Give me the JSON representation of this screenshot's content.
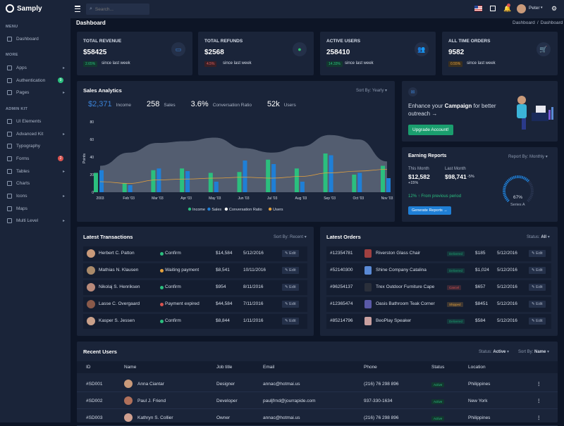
{
  "brand": "Samply",
  "search_placeholder": "Search...",
  "user": {
    "name": "Peter"
  },
  "breadcrumb": {
    "page_title": "Dashboard",
    "home": "Dashboard",
    "current": "Dashboard",
    "sep": "/"
  },
  "sidebar": {
    "menu_head": "MENU",
    "more_head": "MORE",
    "admin_head": "ADMIN KIT",
    "items": [
      {
        "label": "Dashboard",
        "icon": "grid-icon"
      },
      {
        "label": "Apps",
        "icon": "apps-icon"
      },
      {
        "label": "Authentication",
        "icon": "lock-icon",
        "badge": "9"
      },
      {
        "label": "Pages",
        "icon": "file-icon"
      },
      {
        "label": "UI Elements",
        "icon": "box-icon"
      },
      {
        "label": "Advanced Kit",
        "icon": "settings-icon"
      },
      {
        "label": "Typography",
        "icon": "type-icon"
      },
      {
        "label": "Forms",
        "icon": "edit-icon",
        "badge": "2"
      },
      {
        "label": "Tables",
        "icon": "table-icon"
      },
      {
        "label": "Charts",
        "icon": "chart-icon"
      },
      {
        "label": "Icons",
        "icon": "star-icon"
      },
      {
        "label": "Maps",
        "icon": "map-icon"
      },
      {
        "label": "Multi Level",
        "icon": "share-icon"
      }
    ]
  },
  "stats": [
    {
      "title": "TOTAL REVENUE",
      "value": "$58425",
      "badge": "2.65%",
      "badge_color": "#1a9e6e",
      "since": "since last week",
      "icon": "wallet-icon",
      "icon_color": "#3b82d6"
    },
    {
      "title": "TOTAL REFUNDS",
      "value": "$2568",
      "badge": "4.5%",
      "badge_color": "#d9534f",
      "since": "since last week",
      "icon": "refund-icon",
      "icon_color": "#2fbe6b"
    },
    {
      "title": "ACTIVE USERS",
      "value": "258410",
      "badge": "14.33%",
      "badge_color": "#1a9e6e",
      "since": "since last week",
      "icon": "users-icon",
      "icon_color": "#3b82d6"
    },
    {
      "title": "ALL TIME ORDERS",
      "value": "9582",
      "badge": "0.55%",
      "badge_color": "#e6a23c",
      "since": "since last week",
      "icon": "cart-icon",
      "icon_color": "#2fbe6b"
    }
  ],
  "analytics": {
    "title": "Sales Analytics",
    "sort_label": "Sort By:",
    "sort_value": "Yearly",
    "metrics": [
      {
        "value": "$2,371",
        "label": "Income"
      },
      {
        "value": "258",
        "label": "Sales"
      },
      {
        "value": "3.6%",
        "label": "Conversation Ratio"
      },
      {
        "value": "52k",
        "label": "Users"
      }
    ],
    "ylabel": "Points"
  },
  "chart_data": {
    "type": "bar",
    "categories": [
      "2003",
      "Feb '03",
      "Mar '03",
      "Apr '03",
      "May '03",
      "Jun '03",
      "Jul '03",
      "Aug '03",
      "Sep '03",
      "Oct '03",
      "Nov '03"
    ],
    "ylim": [
      0,
      80
    ],
    "yticks": [
      "0",
      "20",
      "40",
      "60",
      "80"
    ],
    "series": [
      {
        "name": "Income",
        "type": "bar",
        "color": "#2bbf7e",
        "values": [
          22,
          10,
          25,
          27,
          22,
          23,
          37,
          27,
          44,
          20,
          30
        ]
      },
      {
        "name": "Sales",
        "type": "bar",
        "color": "#1f7fd6",
        "values": [
          25,
          8,
          27,
          24,
          12,
          36,
          32,
          12,
          42,
          22,
          16
        ]
      },
      {
        "name": "Conversation Ratio",
        "type": "area",
        "color": "#6c7687",
        "values": [
          30,
          45,
          56,
          58,
          62,
          50,
          45,
          52,
          65,
          60,
          35
        ]
      },
      {
        "name": "Users",
        "type": "line",
        "color": "#e6a23c",
        "values": [
          12,
          10,
          14,
          15,
          16,
          17,
          16,
          18,
          22,
          24,
          26
        ]
      }
    ],
    "legend": "bottom",
    "grid": false
  },
  "campaign": {
    "text_pre": "Enhance your ",
    "text_bold": "Campaign",
    "text_post": " for better outreach →",
    "button": "Upgrade Account!"
  },
  "earning": {
    "title": "Earning Reports",
    "sort_label": "Report By:",
    "sort_value": "Monthly",
    "this_month_label": "This Month",
    "this_month_value": "$12,582",
    "this_month_change": "+15%",
    "last_month_label": "Last Month",
    "last_month_value": "$98,741",
    "last_month_change": "-5%",
    "growth": "12% ↑ From previous period",
    "button": "Generate Reports →",
    "gauge_value": "67%",
    "gauge_fraction": 0.67,
    "gauge_label": "Series A"
  },
  "transactions": {
    "title": "Latest Transactions",
    "sort_label": "Sort By:",
    "sort_value": "Recent",
    "edit_label": "✎ Edit",
    "rows": [
      {
        "name": "Herbert C. Patton",
        "status": "Confirm",
        "status_color": "#2bbf7e",
        "amount": "$14,584",
        "date": "5/12/2016",
        "avatar": "#c99a7a"
      },
      {
        "name": "Mathias N. Klausen",
        "status": "Waiting payment",
        "status_color": "#e6a23c",
        "amount": "$8,541",
        "date": "10/11/2016",
        "avatar": "#a98a6a"
      },
      {
        "name": "Nikolaj S. Henriksen",
        "status": "Confirm",
        "status_color": "#2bbf7e",
        "amount": "$954",
        "date": "8/11/2016",
        "avatar": "#b98a7a"
      },
      {
        "name": "Lasse C. Overgaard",
        "status": "Payment expired",
        "status_color": "#d9534f",
        "amount": "$44,584",
        "date": "7/11/2016",
        "avatar": "#8a5a4a"
      },
      {
        "name": "Kasper S. Jessen",
        "status": "Confirm",
        "status_color": "#2bbf7e",
        "amount": "$8,844",
        "date": "1/11/2016",
        "avatar": "#c9a08a"
      }
    ]
  },
  "orders": {
    "title": "Latest Orders",
    "status_label": "Status:",
    "status_value": "All",
    "edit_label": "✎ Edit",
    "rows": [
      {
        "id": "#12354781",
        "product": "Riverston Glass Chair",
        "status": "Delivered",
        "status_color": "#1a9e6e",
        "price": "$185",
        "date": "5/12/2016",
        "thumb": "#a04040"
      },
      {
        "id": "#52140300",
        "product": "Shine Company Catalina",
        "status": "Delivered",
        "status_color": "#1a9e6e",
        "price": "$1,024",
        "date": "5/12/2016",
        "thumb": "#5a8ad6"
      },
      {
        "id": "#96254137",
        "product": "Trex Outdoor Furniture Cape",
        "status": "Cancel",
        "status_color": "#d9534f",
        "price": "$657",
        "date": "5/12/2016",
        "thumb": "#2a2f3a"
      },
      {
        "id": "#12365474",
        "product": "Oasis Bathroom Teak Corner",
        "status": "Shipped",
        "status_color": "#e6a23c",
        "price": "$8451",
        "date": "5/12/2016",
        "thumb": "#5a5aa8"
      },
      {
        "id": "#85214796",
        "product": "BeoPlay Speaker",
        "status": "Delivered",
        "status_color": "#1a9e6e",
        "price": "$584",
        "date": "5/12/2016",
        "thumb": "#c9a0a0"
      }
    ]
  },
  "users": {
    "title": "Recent Users",
    "status_label": "Status:",
    "status_value": "Active",
    "sort_label": "Sort By:",
    "sort_value": "Name",
    "headers": [
      "ID",
      "Name",
      "Job title",
      "Email",
      "Phone",
      "Status",
      "Location"
    ],
    "rows": [
      {
        "id": "#SD001",
        "name": "Anna Ciantar",
        "job": "Designer",
        "email": "annac@hotmai.us",
        "phone": "(216) 76 298 896",
        "status": "Active",
        "location": "Philippines",
        "avatar": "#c99a7a"
      },
      {
        "id": "#SD002",
        "name": "Paul J. Friend",
        "job": "Developer",
        "email": "pauljfrnd@jourrapide.com",
        "phone": "937-330-1634",
        "status": "Active",
        "location": "New York",
        "avatar": "#b0705a"
      },
      {
        "id": "#SD003",
        "name": "Kathryn S. Collier",
        "job": "Owner",
        "email": "annac@hotmai.us",
        "phone": "(216) 76 298 896",
        "status": "Active",
        "location": "Philippines",
        "avatar": "#d0a090"
      }
    ]
  }
}
